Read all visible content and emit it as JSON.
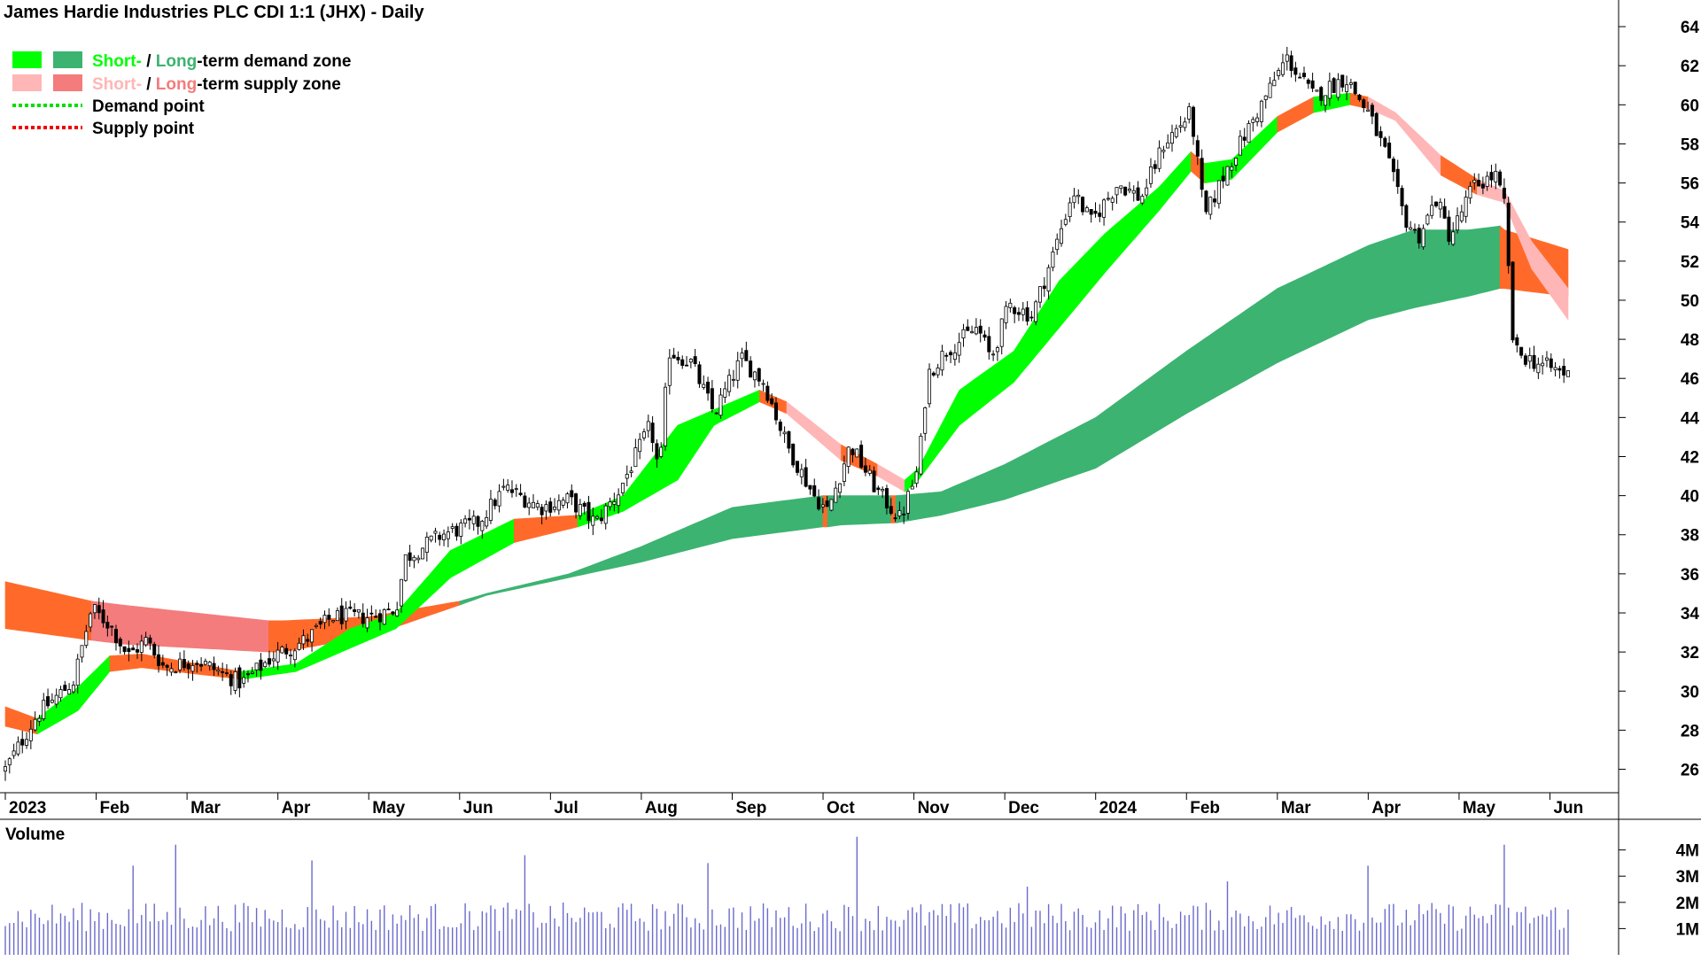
{
  "title": "James Hardie Industries PLC CDI 1:1 (JHX) - Daily",
  "legend": {
    "demand_short": "Short-",
    "demand_sep": " / ",
    "demand_long": "Long",
    "demand_rest": "-term demand zone",
    "supply_short": "Short-",
    "supply_sep": " / ",
    "supply_long": "Long",
    "supply_rest": "-term supply zone",
    "demand_point": "Demand point",
    "supply_point": "Supply point"
  },
  "colors": {
    "short_demand": "#00ff00",
    "long_demand": "#3cb371",
    "short_supply": "#ffb6b6",
    "long_supply": "#f47c7c",
    "zone_transition": "#ff6a2a",
    "demand_point": "#00dd00",
    "supply_point": "#ee0000",
    "volume_bar": "#6a6acd"
  },
  "x_ticks": [
    "2023",
    "Feb",
    "Mar",
    "Apr",
    "May",
    "Jun",
    "Jul",
    "Aug",
    "Sep",
    "Oct",
    "Nov",
    "Dec",
    "2024",
    "Feb",
    "Mar",
    "Apr",
    "May",
    "Jun"
  ],
  "volume_label": "Volume",
  "volume_ticks": [
    "4M",
    "3M",
    "2M",
    "1M"
  ],
  "chart_data": {
    "type": "candlestick",
    "title": "James Hardie Industries PLC CDI 1:1 (JHX) - Daily",
    "y_ticks": [
      26,
      28,
      30,
      32,
      34,
      36,
      38,
      40,
      42,
      44,
      46,
      48,
      50,
      52,
      54,
      56,
      58,
      60,
      62,
      64
    ],
    "ylim": [
      24.8,
      65
    ],
    "volume_ylim": [
      0,
      5000000
    ],
    "volume_ticks": [
      4000000,
      3000000,
      2000000,
      1000000
    ],
    "month_ticks": [
      {
        "label": "2023",
        "month_index": 0
      },
      {
        "label": "Feb",
        "month_index": 1
      },
      {
        "label": "Mar",
        "month_index": 2
      },
      {
        "label": "Apr",
        "month_index": 3
      },
      {
        "label": "May",
        "month_index": 4
      },
      {
        "label": "Jun",
        "month_index": 5
      },
      {
        "label": "Jul",
        "month_index": 6
      },
      {
        "label": "Aug",
        "month_index": 7
      },
      {
        "label": "Sep",
        "month_index": 8
      },
      {
        "label": "Oct",
        "month_index": 9
      },
      {
        "label": "Nov",
        "month_index": 10
      },
      {
        "label": "Dec",
        "month_index": 11
      },
      {
        "label": "2024",
        "month_index": 12
      },
      {
        "label": "Feb",
        "month_index": 13
      },
      {
        "label": "Mar",
        "month_index": 14
      },
      {
        "label": "Apr",
        "month_index": 15
      },
      {
        "label": "May",
        "month_index": 16
      },
      {
        "label": "Jun",
        "month_index": 17
      }
    ],
    "price_anchors": [
      {
        "m": 0.0,
        "p": 26.0
      },
      {
        "m": 0.35,
        "p": 28.8
      },
      {
        "m": 0.75,
        "p": 30.5
      },
      {
        "m": 0.95,
        "p": 34.2
      },
      {
        "m": 1.15,
        "p": 33.4
      },
      {
        "m": 1.35,
        "p": 31.8
      },
      {
        "m": 1.55,
        "p": 32.6
      },
      {
        "m": 1.75,
        "p": 31.2
      },
      {
        "m": 2.1,
        "p": 31.6
      },
      {
        "m": 2.6,
        "p": 30.4
      },
      {
        "m": 2.95,
        "p": 31.8
      },
      {
        "m": 3.3,
        "p": 32.6
      },
      {
        "m": 3.6,
        "p": 33.8
      },
      {
        "m": 4.0,
        "p": 33.8
      },
      {
        "m": 4.3,
        "p": 34.2
      },
      {
        "m": 4.4,
        "p": 36.8
      },
      {
        "m": 4.8,
        "p": 38.0
      },
      {
        "m": 5.2,
        "p": 38.6
      },
      {
        "m": 5.5,
        "p": 40.4
      },
      {
        "m": 5.9,
        "p": 39.4
      },
      {
        "m": 6.2,
        "p": 39.8
      },
      {
        "m": 6.5,
        "p": 38.6
      },
      {
        "m": 6.75,
        "p": 40.2
      },
      {
        "m": 7.1,
        "p": 43.6
      },
      {
        "m": 7.2,
        "p": 41.0
      },
      {
        "m": 7.3,
        "p": 47.4
      },
      {
        "m": 7.55,
        "p": 46.8
      },
      {
        "m": 7.8,
        "p": 44.2
      },
      {
        "m": 8.1,
        "p": 47.0
      },
      {
        "m": 8.35,
        "p": 45.8
      },
      {
        "m": 8.6,
        "p": 42.6
      },
      {
        "m": 8.9,
        "p": 40.0
      },
      {
        "m": 9.05,
        "p": 39.2
      },
      {
        "m": 9.3,
        "p": 42.6
      },
      {
        "m": 9.6,
        "p": 40.2
      },
      {
        "m": 9.85,
        "p": 38.8
      },
      {
        "m": 10.05,
        "p": 41.4
      },
      {
        "m": 10.15,
        "p": 46.2
      },
      {
        "m": 10.35,
        "p": 47.4
      },
      {
        "m": 10.7,
        "p": 48.6
      },
      {
        "m": 10.85,
        "p": 47.0
      },
      {
        "m": 11.05,
        "p": 49.8
      },
      {
        "m": 11.3,
        "p": 49.2
      },
      {
        "m": 11.55,
        "p": 52.6
      },
      {
        "m": 11.75,
        "p": 55.6
      },
      {
        "m": 11.95,
        "p": 54.0
      },
      {
        "m": 12.25,
        "p": 56.0
      },
      {
        "m": 12.5,
        "p": 55.2
      },
      {
        "m": 12.75,
        "p": 58.0
      },
      {
        "m": 13.05,
        "p": 59.6
      },
      {
        "m": 13.2,
        "p": 54.2
      },
      {
        "m": 13.45,
        "p": 56.8
      },
      {
        "m": 13.8,
        "p": 59.8
      },
      {
        "m": 14.1,
        "p": 62.4
      },
      {
        "m": 14.4,
        "p": 60.4
      },
      {
        "m": 14.75,
        "p": 61.4
      },
      {
        "m": 15.0,
        "p": 59.6
      },
      {
        "m": 15.2,
        "p": 57.4
      },
      {
        "m": 15.4,
        "p": 54.2
      },
      {
        "m": 15.55,
        "p": 53.2
      },
      {
        "m": 15.75,
        "p": 55.2
      },
      {
        "m": 15.9,
        "p": 53.2
      },
      {
        "m": 16.15,
        "p": 55.8
      },
      {
        "m": 16.4,
        "p": 56.4
      },
      {
        "m": 16.5,
        "p": 54.8
      },
      {
        "m": 16.6,
        "p": 47.4
      },
      {
        "m": 16.85,
        "p": 46.8
      },
      {
        "m": 17.2,
        "p": 46.2
      }
    ],
    "short_band_anchors": [
      {
        "m": 0.0,
        "hi": 29.2,
        "lo": 28.2,
        "z": "supply"
      },
      {
        "m": 0.35,
        "hi": 28.6,
        "lo": 27.8,
        "z": "transition"
      },
      {
        "m": 0.8,
        "hi": 30.2,
        "lo": 29.0,
        "z": "demand"
      },
      {
        "m": 1.15,
        "hi": 31.8,
        "lo": 31.0,
        "z": "demand"
      },
      {
        "m": 1.5,
        "hi": 31.9,
        "lo": 31.2,
        "z": "transition"
      },
      {
        "m": 2.6,
        "hi": 31.0,
        "lo": 30.6,
        "z": "transition"
      },
      {
        "m": 3.2,
        "hi": 31.4,
        "lo": 31.0,
        "z": "demand"
      },
      {
        "m": 3.8,
        "hi": 33.2,
        "lo": 32.2,
        "z": "demand"
      },
      {
        "m": 4.3,
        "hi": 34.0,
        "lo": 33.2,
        "z": "demand"
      },
      {
        "m": 4.9,
        "hi": 37.2,
        "lo": 35.8,
        "z": "demand"
      },
      {
        "m": 5.6,
        "hi": 38.8,
        "lo": 37.6,
        "z": "demand"
      },
      {
        "m": 6.3,
        "hi": 39.0,
        "lo": 38.4,
        "z": "transition"
      },
      {
        "m": 6.8,
        "hi": 40.0,
        "lo": 39.2,
        "z": "demand"
      },
      {
        "m": 7.4,
        "hi": 43.6,
        "lo": 40.8,
        "z": "demand"
      },
      {
        "m": 7.8,
        "hi": 44.4,
        "lo": 43.6,
        "z": "demand"
      },
      {
        "m": 8.3,
        "hi": 45.4,
        "lo": 44.8,
        "z": "demand"
      },
      {
        "m": 8.6,
        "hi": 44.8,
        "lo": 44.2,
        "z": "transition"
      },
      {
        "m": 9.2,
        "hi": 42.6,
        "lo": 41.8,
        "z": "supply"
      },
      {
        "m": 9.6,
        "hi": 41.6,
        "lo": 41.0,
        "z": "transition"
      },
      {
        "m": 9.9,
        "hi": 40.8,
        "lo": 40.2,
        "z": "supply"
      },
      {
        "m": 10.05,
        "hi": 41.4,
        "lo": 40.8,
        "z": "demand"
      },
      {
        "m": 10.5,
        "hi": 45.4,
        "lo": 43.6,
        "z": "demand"
      },
      {
        "m": 11.1,
        "hi": 47.4,
        "lo": 45.8,
        "z": "demand"
      },
      {
        "m": 11.6,
        "hi": 51.0,
        "lo": 48.6,
        "z": "demand"
      },
      {
        "m": 12.1,
        "hi": 53.4,
        "lo": 51.4,
        "z": "demand"
      },
      {
        "m": 12.7,
        "hi": 55.8,
        "lo": 54.6,
        "z": "demand"
      },
      {
        "m": 13.05,
        "hi": 57.6,
        "lo": 56.6,
        "z": "demand"
      },
      {
        "m": 13.2,
        "hi": 57.0,
        "lo": 56.0,
        "z": "transition"
      },
      {
        "m": 13.5,
        "hi": 57.2,
        "lo": 56.2,
        "z": "demand"
      },
      {
        "m": 14.0,
        "hi": 59.4,
        "lo": 58.6,
        "z": "demand"
      },
      {
        "m": 14.4,
        "hi": 60.4,
        "lo": 59.6,
        "z": "transition"
      },
      {
        "m": 14.8,
        "hi": 60.6,
        "lo": 60.0,
        "z": "demand"
      },
      {
        "m": 15.0,
        "hi": 60.4,
        "lo": 59.8,
        "z": "transition"
      },
      {
        "m": 15.3,
        "hi": 59.6,
        "lo": 59.2,
        "z": "supply"
      },
      {
        "m": 15.8,
        "hi": 57.4,
        "lo": 56.4,
        "z": "supply"
      },
      {
        "m": 16.2,
        "hi": 56.2,
        "lo": 55.4,
        "z": "transition"
      },
      {
        "m": 16.5,
        "hi": 55.6,
        "lo": 55.0,
        "z": "supply"
      },
      {
        "m": 16.8,
        "hi": 53.0,
        "lo": 51.6,
        "z": "supply"
      },
      {
        "m": 17.2,
        "hi": 50.6,
        "lo": 49.0,
        "z": "supply"
      }
    ],
    "long_band_anchors": [
      {
        "m": 0.0,
        "hi": 35.6,
        "lo": 33.2,
        "z": "supply"
      },
      {
        "m": 0.95,
        "hi": 34.6,
        "lo": 32.6,
        "z": "transition"
      },
      {
        "m": 1.3,
        "hi": 34.4,
        "lo": 32.4,
        "z": "supply"
      },
      {
        "m": 2.9,
        "hi": 33.6,
        "lo": 32.0,
        "z": "supply"
      },
      {
        "m": 3.05,
        "hi": 33.6,
        "lo": 32.0,
        "z": "transition"
      },
      {
        "m": 4.0,
        "hi": 33.8,
        "lo": 32.8,
        "z": "transition"
      },
      {
        "m": 5.0,
        "hi": 34.6,
        "lo": 34.4,
        "z": "transition"
      },
      {
        "m": 5.3,
        "hi": 35.0,
        "lo": 34.9,
        "z": "demand"
      },
      {
        "m": 6.2,
        "hi": 36.0,
        "lo": 35.8,
        "z": "demand"
      },
      {
        "m": 7.0,
        "hi": 37.4,
        "lo": 36.6,
        "z": "demand"
      },
      {
        "m": 8.0,
        "hi": 39.4,
        "lo": 37.8,
        "z": "demand"
      },
      {
        "m": 9.0,
        "hi": 40.0,
        "lo": 38.4,
        "z": "demand"
      },
      {
        "m": 9.05,
        "hi": 40.0,
        "lo": 38.4,
        "z": "transition"
      },
      {
        "m": 9.2,
        "hi": 40.0,
        "lo": 38.5,
        "z": "demand"
      },
      {
        "m": 9.75,
        "hi": 40.0,
        "lo": 38.6,
        "z": "demand"
      },
      {
        "m": 9.8,
        "hi": 40.0,
        "lo": 38.6,
        "z": "transition"
      },
      {
        "m": 10.3,
        "hi": 40.2,
        "lo": 39.0,
        "z": "demand"
      },
      {
        "m": 11.0,
        "hi": 41.6,
        "lo": 39.8,
        "z": "demand"
      },
      {
        "m": 12.0,
        "hi": 44.0,
        "lo": 41.4,
        "z": "demand"
      },
      {
        "m": 13.0,
        "hi": 47.4,
        "lo": 44.2,
        "z": "demand"
      },
      {
        "m": 14.0,
        "hi": 50.6,
        "lo": 46.8,
        "z": "demand"
      },
      {
        "m": 15.0,
        "hi": 52.8,
        "lo": 49.0,
        "z": "demand"
      },
      {
        "m": 15.5,
        "hi": 53.6,
        "lo": 49.6,
        "z": "demand"
      },
      {
        "m": 16.1,
        "hi": 53.6,
        "lo": 50.2,
        "z": "demand"
      },
      {
        "m": 16.45,
        "hi": 53.8,
        "lo": 50.6,
        "z": "demand"
      },
      {
        "m": 16.5,
        "hi": 53.6,
        "lo": 50.6,
        "z": "transition"
      },
      {
        "m": 17.2,
        "hi": 52.6,
        "lo": 50.2,
        "z": "transition"
      }
    ]
  }
}
